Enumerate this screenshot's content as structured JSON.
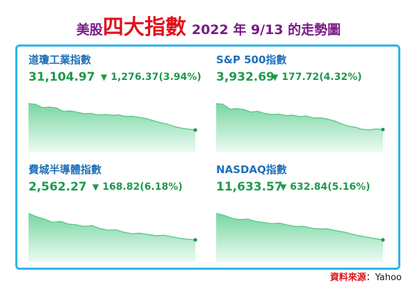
{
  "header": {
    "prefix": "美股",
    "highlight": "四大指數",
    "suffix": "2022 年 9/13 的走勢圖"
  },
  "source": {
    "label": "資料來源",
    "separator": "：",
    "name": "Yahoo"
  },
  "colors": {
    "title_purple": "#7a1a86",
    "title_red": "#e1121b",
    "frame_blue": "#29b6e9",
    "name_blue": "#1f6fb8",
    "value_green": "#1e9a4c",
    "area_top": "#79d6a2",
    "area_bottom": "#ecfbf2",
    "line_green": "#5cc98a",
    "end_dot": "#1e9a4c"
  },
  "panels": [
    {
      "name": "道瓊工業指數",
      "value": "31,104.97",
      "change": "1,276.37(3.94%)",
      "direction": "down"
    },
    {
      "name": "S&P 500指數",
      "value": "3,932.69",
      "change": "177.72(4.32%)",
      "direction": "down"
    },
    {
      "name": "費城半導體指數",
      "value": "2,562.27",
      "change": "168.82(6.18%)",
      "direction": "down"
    },
    {
      "name": "NASDAQ指數",
      "value": "11,633.57",
      "change": "632.84(5.16%)",
      "direction": "down"
    }
  ],
  "chart_data": [
    {
      "type": "area",
      "title": "道瓊工業指數",
      "values": [
        32150,
        32120,
        31990,
        32010,
        31980,
        31840,
        31860,
        31810,
        31750,
        31760,
        31700,
        31720,
        31690,
        31705,
        31640,
        31650,
        31600,
        31560,
        31470,
        31390,
        31340,
        31240,
        31180,
        31140,
        31104.97
      ]
    },
    {
      "type": "area",
      "title": "S&P 500指數",
      "values": [
        4080,
        4076,
        4048,
        4052,
        4046,
        4032,
        4036,
        4024,
        4018,
        4020,
        4012,
        4014,
        4006,
        4009,
        3998,
        4000,
        3992,
        3982,
        3966,
        3952,
        3946,
        3934,
        3930,
        3936,
        3932.69
      ]
    },
    {
      "type": "area",
      "title": "費城半導體指數",
      "values": [
        2725,
        2705,
        2690,
        2670,
        2676,
        2660,
        2655,
        2645,
        2650,
        2632,
        2622,
        2624,
        2610,
        2600,
        2603,
        2596,
        2588,
        2591,
        2582,
        2572,
        2566,
        2562.27
      ]
    },
    {
      "type": "area",
      "title": "NASDAQ指數",
      "values": [
        12190,
        12150,
        12085,
        12060,
        12072,
        12020,
        12000,
        11975,
        11985,
        11945,
        11915,
        11920,
        11880,
        11860,
        11866,
        11830,
        11800,
        11760,
        11720,
        11690,
        11660,
        11633.57
      ]
    }
  ]
}
